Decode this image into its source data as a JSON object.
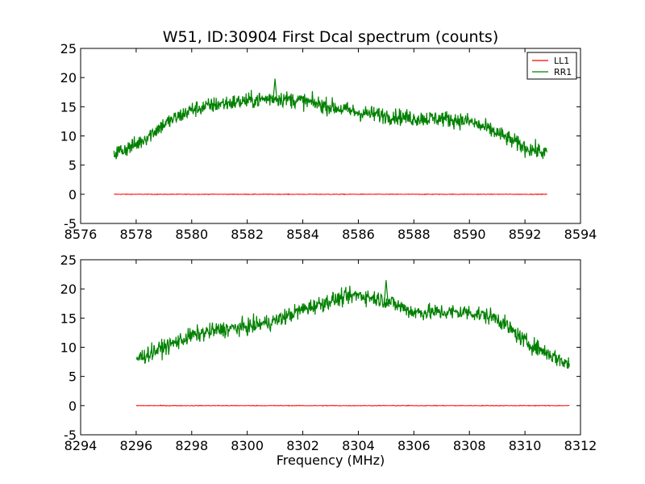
{
  "figure": {
    "title": "W51, ID:30904 First Dcal spectrum (counts)",
    "xlabel": "Frequency (MHz)"
  },
  "colors": {
    "LL1": "#ff0000",
    "RR1": "#008000",
    "frame": "#000000",
    "background": "#ffffff"
  },
  "chart_data": [
    {
      "type": "line",
      "title": "W51, ID:30904 First Dcal spectrum (counts)",
      "xlabel": "",
      "ylabel": "",
      "xlim": [
        8576,
        8594
      ],
      "ylim": [
        -5,
        25
      ],
      "xticks": [
        8576,
        8578,
        8580,
        8582,
        8584,
        8586,
        8588,
        8590,
        8592,
        8594
      ],
      "yticks": [
        -5,
        0,
        5,
        10,
        15,
        20,
        25
      ],
      "grid": false,
      "legend": {
        "position": "top-right",
        "entries": [
          "LL1",
          "RR1"
        ]
      },
      "x": [
        8577.2,
        8578,
        8579,
        8580,
        8581,
        8582,
        8583,
        8584,
        8585,
        8586,
        8587,
        8588,
        8589,
        8590,
        8591,
        8592,
        8592.8
      ],
      "series": [
        {
          "name": "LL1",
          "values": [
            0,
            0,
            0,
            0,
            0,
            0,
            0,
            0,
            0,
            0,
            0,
            0,
            0,
            0,
            0,
            0,
            0
          ]
        },
        {
          "name": "RR1",
          "values": [
            7,
            8.5,
            12,
            14.5,
            15.5,
            16,
            16.5,
            16,
            15,
            14,
            13.5,
            13,
            13,
            12.5,
            10.5,
            8,
            7
          ]
        }
      ],
      "annotations": [
        {
          "x": 8583.0,
          "y": 19.8,
          "series": "RR1"
        }
      ]
    },
    {
      "type": "line",
      "title": "",
      "xlabel": "Frequency (MHz)",
      "ylabel": "",
      "xlim": [
        8294,
        8312
      ],
      "ylim": [
        -5,
        25
      ],
      "xticks": [
        8294,
        8296,
        8298,
        8300,
        8302,
        8304,
        8306,
        8308,
        8310,
        8312
      ],
      "yticks": [
        -5,
        0,
        5,
        10,
        15,
        20,
        25
      ],
      "grid": false,
      "legend": null,
      "x": [
        8296,
        8297,
        8298,
        8299,
        8300,
        8301,
        8302,
        8303,
        8304,
        8305,
        8306,
        8307,
        8308,
        8309,
        8310,
        8311,
        8311.6
      ],
      "series": [
        {
          "name": "LL1",
          "values": [
            0,
            0,
            0,
            0,
            0,
            0,
            0,
            0,
            0,
            0,
            0,
            0,
            0,
            0,
            0,
            0,
            0
          ]
        },
        {
          "name": "RR1",
          "values": [
            8,
            10,
            12,
            13,
            13.5,
            14.5,
            16.5,
            18,
            19,
            18,
            16,
            16,
            16,
            15,
            11,
            8.5,
            7
          ]
        }
      ],
      "annotations": [
        {
          "x": 8305.0,
          "y": 21.5,
          "series": "RR1"
        }
      ]
    }
  ]
}
